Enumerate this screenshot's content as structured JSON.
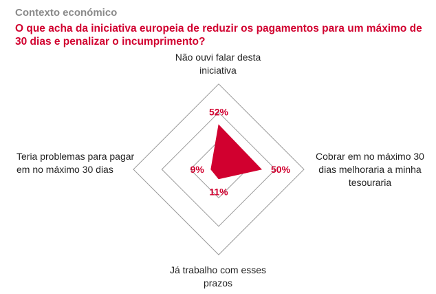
{
  "header": {
    "section": "Contexto económico",
    "question": "O que acha da iniciativa europeia de reduzir os pagamentos para um máximo de 30 dias e penalizar o incumprimento?"
  },
  "colors": {
    "accent": "#d1002f",
    "grid": "#9a9a9a",
    "section_text": "#8a8a8a"
  },
  "chart_data": {
    "type": "radar",
    "max": 100,
    "rings": 3,
    "axes": [
      {
        "label": "Não ouvi falar desta iniciativa",
        "value": 52,
        "value_label": "52%",
        "direction": "top"
      },
      {
        "label": "Cobrar em no máximo 30 dias melhoraria a minha tesouraria",
        "value": 50,
        "value_label": "50%",
        "direction": "right"
      },
      {
        "label": "Já trabalho com esses prazos",
        "value": 11,
        "value_label": "11%",
        "direction": "bottom"
      },
      {
        "label": "Teria problemas para pagar em no máximo 30 dias",
        "value": 9,
        "value_label": "9%",
        "direction": "left"
      }
    ]
  }
}
